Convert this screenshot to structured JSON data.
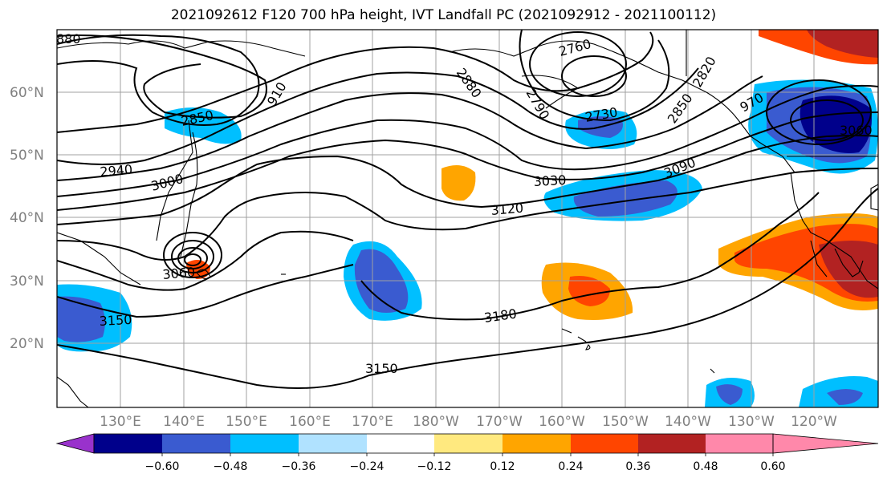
{
  "title": "2021092612 F120 700 hPa height, IVT Landfall PC (2021092912 - 2021100112)",
  "lat_labels": [
    "60°N",
    "50°N",
    "40°N",
    "30°N",
    "20°N"
  ],
  "lon_labels": [
    "130°E",
    "140°E",
    "150°E",
    "160°E",
    "170°E",
    "180°W",
    "170°W",
    "160°W",
    "150°W",
    "140°W",
    "130°W",
    "120°W"
  ],
  "contour_labels": [
    "880",
    "2850",
    "910",
    "2940",
    "3000",
    "3060",
    "3150",
    "2760",
    "2880",
    "2790",
    "2730",
    "2820",
    "2850",
    "970",
    "3060",
    "3030",
    "3090",
    "3120",
    "3180",
    "3150"
  ],
  "colorbar": {
    "ticks": [
      "−0.60",
      "−0.48",
      "−0.36",
      "−0.24",
      "−0.12",
      "0.12",
      "0.24",
      "0.36",
      "0.48",
      "0.60"
    ],
    "colors": [
      "#9932cc",
      "#00008b",
      "#3a5bd0",
      "#00bfff",
      "#b0e2ff",
      "#ffffff",
      "#ffe97f",
      "#ffa500",
      "#ff4500",
      "#b22222",
      "#ff88aa"
    ]
  }
}
